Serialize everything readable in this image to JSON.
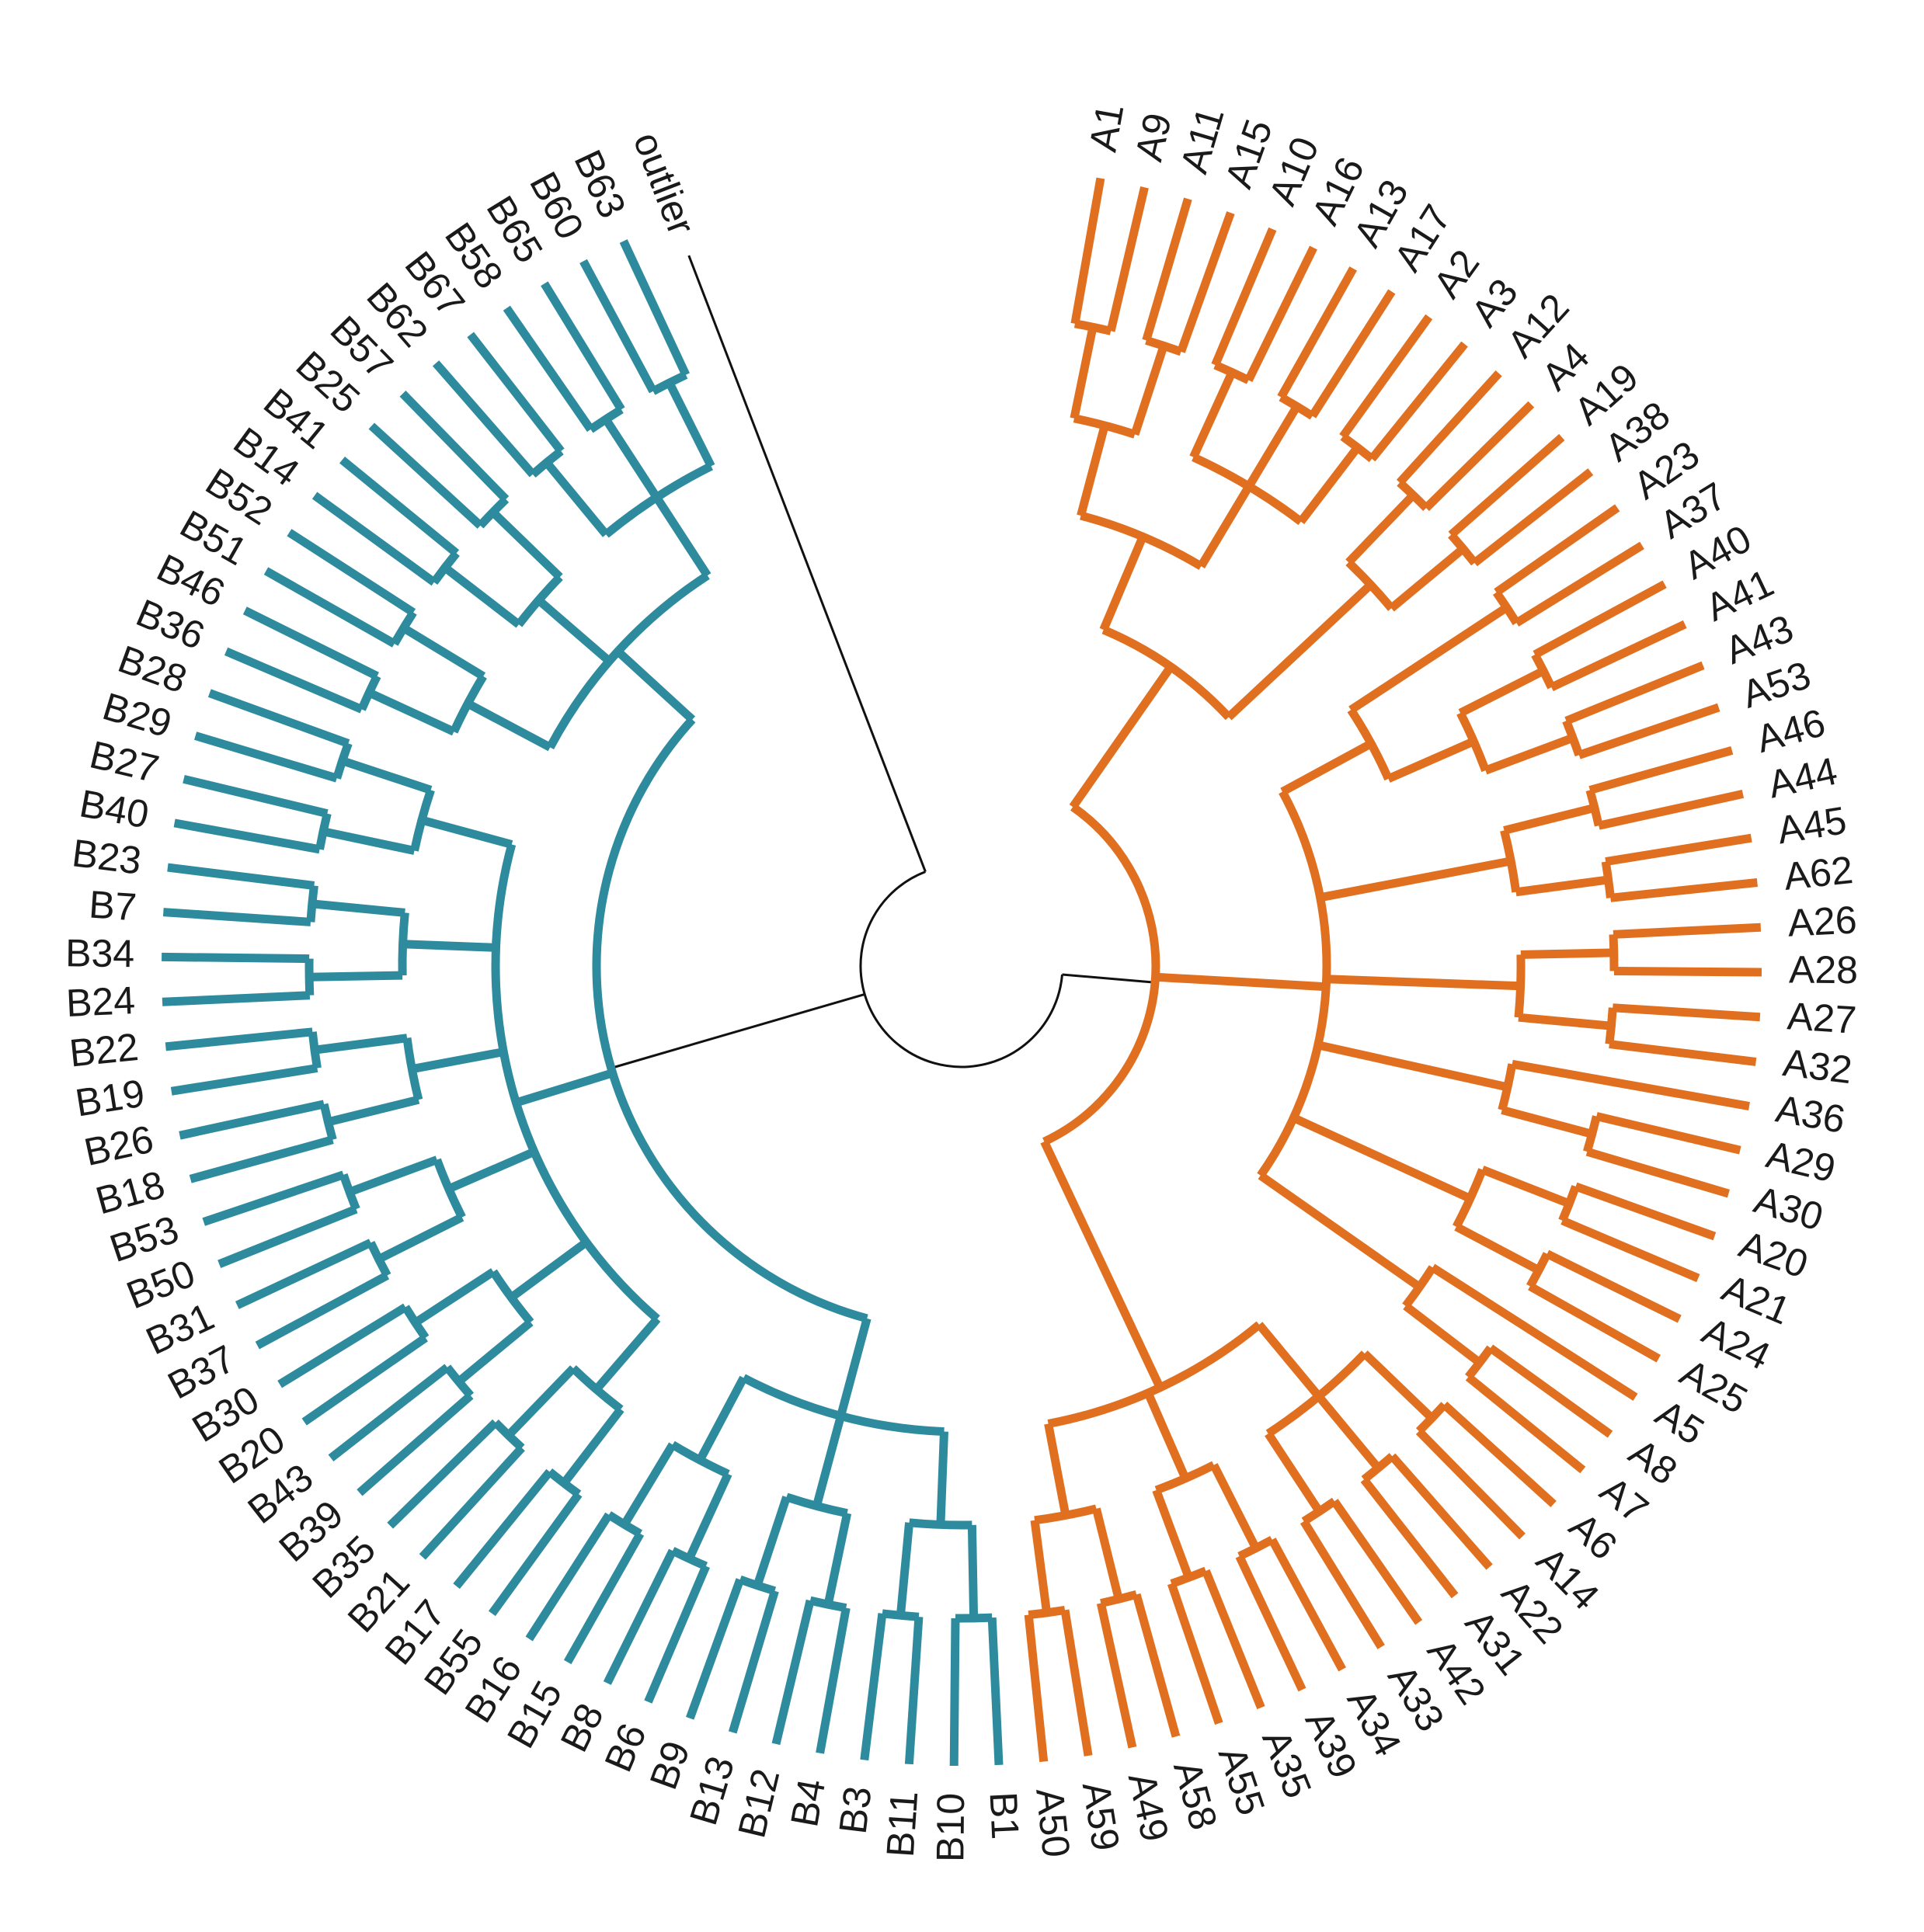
{
  "colors": {
    "group_a": "#E07020",
    "group_b": "#2E8B9E",
    "outlier": "#111111",
    "background": "#ffffff"
  },
  "tree": {
    "n": "root",
    "c": [
      {
        "n": "rA",
        "col": "a",
        "c": [
          {
            "n": "a_top",
            "c": [
              {
                "n": "a_t1",
                "c": [
                  {
                    "n": "a_t11",
                    "c": [
                      {
                        "n": "a_p1",
                        "c": [
                          {
                            "n": "A1"
                          },
                          {
                            "n": "A9"
                          }
                        ]
                      },
                      {
                        "n": "a_p2",
                        "c": [
                          {
                            "n": "A11"
                          },
                          {
                            "n": "A15"
                          }
                        ]
                      }
                    ]
                  },
                  {
                    "n": "a_t12",
                    "c": [
                      {
                        "n": "a_p3",
                        "c": [
                          {
                            "n": "A10"
                          },
                          {
                            "n": "A16"
                          }
                        ]
                      },
                      {
                        "n": "a_p4",
                        "c": [
                          {
                            "n": "A13"
                          },
                          {
                            "n": "A17"
                          }
                        ]
                      },
                      {
                        "n": "a_p5",
                        "c": [
                          {
                            "n": "A2"
                          },
                          {
                            "n": "A3"
                          }
                        ]
                      }
                    ]
                  }
                ]
              },
              {
                "n": "a_t2",
                "c": [
                  {
                    "n": "a_p6",
                    "c": [
                      {
                        "n": "A12"
                      },
                      {
                        "n": "A4"
                      }
                    ]
                  },
                  {
                    "n": "a_p7",
                    "c": [
                      {
                        "n": "A19"
                      },
                      {
                        "n": "A38"
                      }
                    ]
                  }
                ]
              }
            ]
          },
          {
            "n": "a_mid",
            "c": [
              {
                "n": "a_m1",
                "c": [
                  {
                    "n": "a_p8",
                    "c": [
                      {
                        "n": "A23"
                      },
                      {
                        "n": "A37"
                      }
                    ]
                  },
                  {
                    "n": "a_m11",
                    "c": [
                      {
                        "n": "a_p9",
                        "c": [
                          {
                            "n": "A40"
                          },
                          {
                            "n": "A41"
                          }
                        ]
                      },
                      {
                        "n": "a_p10",
                        "c": [
                          {
                            "n": "A43"
                          },
                          {
                            "n": "A53"
                          }
                        ]
                      }
                    ]
                  }
                ]
              },
              {
                "n": "a_m2",
                "c": [
                  {
                    "n": "a_p11",
                    "c": [
                      {
                        "n": "A46"
                      },
                      {
                        "n": "A44"
                      }
                    ]
                  },
                  {
                    "n": "a_p12",
                    "c": [
                      {
                        "n": "A45"
                      },
                      {
                        "n": "A62"
                      }
                    ]
                  }
                ]
              },
              {
                "n": "a_m3",
                "c": [
                  {
                    "n": "a_p13",
                    "c": [
                      {
                        "n": "A26"
                      },
                      {
                        "n": "A28"
                      }
                    ]
                  },
                  {
                    "n": "a_p14",
                    "c": [
                      {
                        "n": "A27"
                      },
                      {
                        "n": "A32"
                      }
                    ]
                  }
                ]
              },
              {
                "n": "a_m4",
                "c": [
                  {
                    "n": "A36"
                  },
                  {
                    "n": "a_p15",
                    "c": [
                      {
                        "n": "A29"
                      },
                      {
                        "n": "A30"
                      }
                    ]
                  }
                ]
              },
              {
                "n": "a_m5",
                "c": [
                  {
                    "n": "a_p16",
                    "c": [
                      {
                        "n": "A20"
                      },
                      {
                        "n": "A21"
                      }
                    ]
                  },
                  {
                    "n": "a_p17",
                    "c": [
                      {
                        "n": "A24"
                      },
                      {
                        "n": "A25"
                      }
                    ]
                  }
                ]
              },
              {
                "n": "a_m6",
                "c": [
                  {
                    "n": "A5"
                  },
                  {
                    "n": "a_p18",
                    "c": [
                      {
                        "n": "A8"
                      },
                      {
                        "n": "A7"
                      }
                    ]
                  }
                ]
              }
            ]
          },
          {
            "n": "a_bot",
            "c": [
              {
                "n": "a_b1",
                "c": [
                  {
                    "n": "a_p19",
                    "c": [
                      {
                        "n": "A6"
                      },
                      {
                        "n": "A14"
                      }
                    ]
                  },
                  {
                    "n": "a_p20",
                    "c": [
                      {
                        "n": "A22"
                      },
                      {
                        "n": "A31"
                      }
                    ]
                  },
                  {
                    "n": "a_p21",
                    "c": [
                      {
                        "n": "A42"
                      },
                      {
                        "n": "A33"
                      }
                    ]
                  }
                ]
              },
              {
                "n": "a_b2",
                "c": [
                  {
                    "n": "a_p22",
                    "c": [
                      {
                        "n": "A34"
                      },
                      {
                        "n": "A39"
                      }
                    ]
                  },
                  {
                    "n": "a_p23",
                    "c": [
                      {
                        "n": "A35"
                      },
                      {
                        "n": "A55"
                      }
                    ]
                  }
                ]
              },
              {
                "n": "a_b3",
                "c": [
                  {
                    "n": "a_p24",
                    "c": [
                      {
                        "n": "A58"
                      },
                      {
                        "n": "A49"
                      }
                    ]
                  },
                  {
                    "n": "a_p25",
                    "c": [
                      {
                        "n": "A59"
                      },
                      {
                        "n": "A50"
                      }
                    ]
                  }
                ]
              }
            ]
          }
        ]
      },
      {
        "n": "rB",
        "col": "b",
        "c": [
          {
            "n": "b_bot",
            "c": [
              {
                "n": "b_o1",
                "c": [
                  {
                    "n": "b_p1",
                    "c": [
                      {
                        "n": "B1"
                      },
                      {
                        "n": "B10"
                      }
                    ]
                  },
                  {
                    "n": "b_p2",
                    "c": [
                      {
                        "n": "B11"
                      },
                      {
                        "n": "B3"
                      }
                    ]
                  }
                ]
              },
              {
                "n": "b_o2",
                "c": [
                  {
                    "n": "b_p3",
                    "c": [
                      {
                        "n": "B4"
                      },
                      {
                        "n": "B12"
                      }
                    ]
                  },
                  {
                    "n": "b_p4",
                    "c": [
                      {
                        "n": "B13"
                      },
                      {
                        "n": "B9"
                      }
                    ]
                  }
                ]
              },
              {
                "n": "b_o3",
                "c": [
                  {
                    "n": "b_p5",
                    "c": [
                      {
                        "n": "B6"
                      },
                      {
                        "n": "B8"
                      }
                    ]
                  },
                  {
                    "n": "b_p6",
                    "c": [
                      {
                        "n": "B15"
                      },
                      {
                        "n": "B16"
                      }
                    ]
                  }
                ]
              }
            ]
          },
          {
            "n": "b_mid",
            "c": [
              {
                "n": "b_m1",
                "c": [
                  {
                    "n": "b_p7",
                    "c": [
                      {
                        "n": "B55"
                      },
                      {
                        "n": "B17"
                      }
                    ]
                  },
                  {
                    "n": "b_p8",
                    "c": [
                      {
                        "n": "B21"
                      },
                      {
                        "n": "B35"
                      }
                    ]
                  }
                ]
              },
              {
                "n": "b_m2",
                "c": [
                  {
                    "n": "b_p9",
                    "c": [
                      {
                        "n": "B39"
                      },
                      {
                        "n": "B43"
                      }
                    ]
                  },
                  {
                    "n": "b_p10",
                    "c": [
                      {
                        "n": "B20"
                      },
                      {
                        "n": "B30"
                      }
                    ]
                  }
                ]
              },
              {
                "n": "b_m3",
                "c": [
                  {
                    "n": "b_p11",
                    "c": [
                      {
                        "n": "B37"
                      },
                      {
                        "n": "B31"
                      }
                    ]
                  },
                  {
                    "n": "b_p12",
                    "c": [
                      {
                        "n": "B50"
                      },
                      {
                        "n": "B53"
                      }
                    ]
                  }
                ]
              },
              {
                "n": "b_m4",
                "c": [
                  {
                    "n": "b_p13",
                    "c": [
                      {
                        "n": "B18"
                      },
                      {
                        "n": "B26"
                      }
                    ]
                  },
                  {
                    "n": "b_p14",
                    "c": [
                      {
                        "n": "B19"
                      },
                      {
                        "n": "B22"
                      }
                    ]
                  }
                ]
              },
              {
                "n": "b_m5",
                "c": [
                  {
                    "n": "b_p15",
                    "c": [
                      {
                        "n": "B24"
                      },
                      {
                        "n": "B34"
                      }
                    ]
                  },
                  {
                    "n": "b_p16",
                    "c": [
                      {
                        "n": "B7"
                      },
                      {
                        "n": "B23"
                      }
                    ]
                  }
                ]
              },
              {
                "n": "b_m6",
                "c": [
                  {
                    "n": "b_p17",
                    "c": [
                      {
                        "n": "B40"
                      },
                      {
                        "n": "B27"
                      }
                    ]
                  },
                  {
                    "n": "b_p18",
                    "c": [
                      {
                        "n": "B29"
                      },
                      {
                        "n": "B28"
                      }
                    ]
                  }
                ]
              }
            ]
          },
          {
            "n": "b_top",
            "c": [
              {
                "n": "b_t1",
                "c": [
                  {
                    "n": "b_p19",
                    "c": [
                      {
                        "n": "B36"
                      },
                      {
                        "n": "B46"
                      }
                    ]
                  },
                  {
                    "n": "b_p20",
                    "c": [
                      {
                        "n": "B51"
                      },
                      {
                        "n": "B52"
                      }
                    ]
                  }
                ]
              },
              {
                "n": "b_t2",
                "c": [
                  {
                    "n": "b_p21",
                    "c": [
                      {
                        "n": "B14"
                      },
                      {
                        "n": "B41"
                      }
                    ]
                  },
                  {
                    "n": "b_p22",
                    "c": [
                      {
                        "n": "B25"
                      },
                      {
                        "n": "B57"
                      }
                    ]
                  }
                ]
              },
              {
                "n": "b_t3",
                "c": [
                  {
                    "n": "b_p23",
                    "c": [
                      {
                        "n": "B62"
                      },
                      {
                        "n": "B67"
                      }
                    ]
                  },
                  {
                    "n": "b_p24",
                    "c": [
                      {
                        "n": "B58"
                      },
                      {
                        "n": "B65"
                      }
                    ]
                  },
                  {
                    "n": "b_p25",
                    "c": [
                      {
                        "n": "B60"
                      },
                      {
                        "n": "B63"
                      }
                    ]
                  }
                ]
              }
            ]
          }
        ]
      },
      {
        "n": "outlier",
        "col": "o"
      }
    ]
  }
}
